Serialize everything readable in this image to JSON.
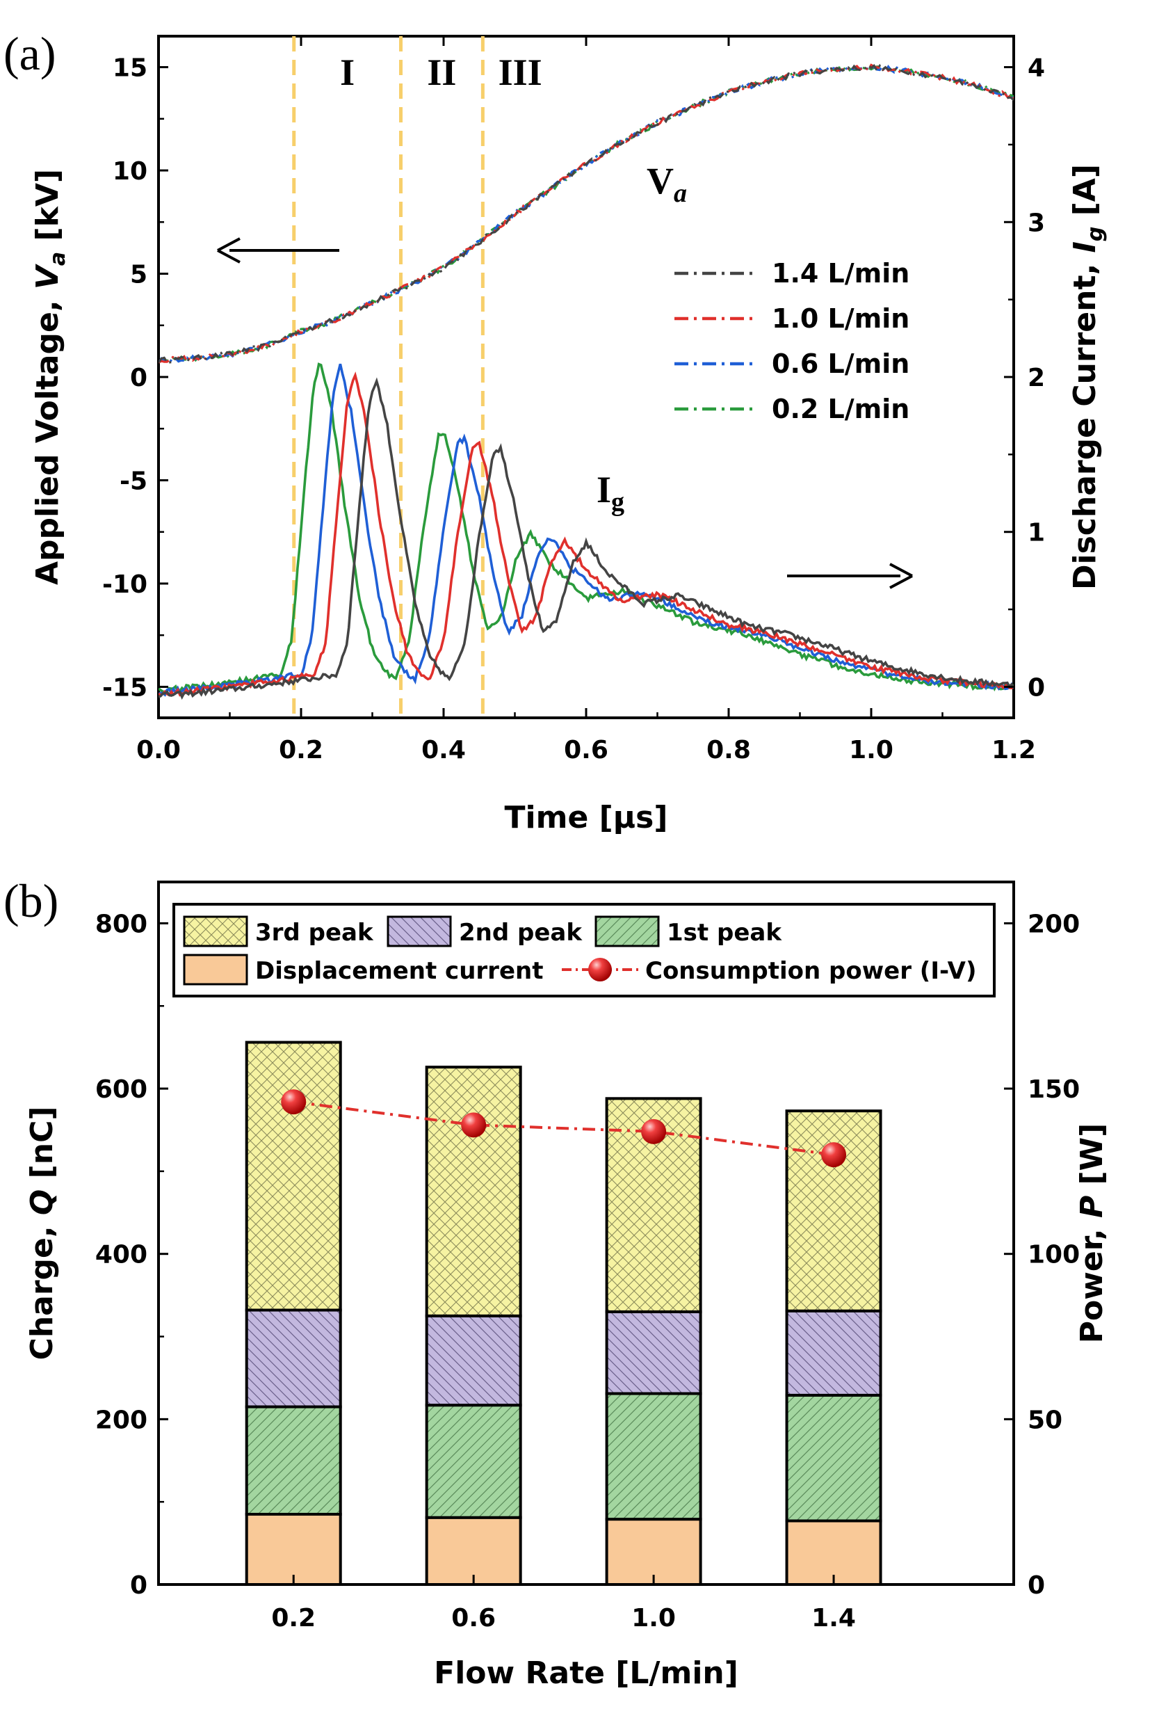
{
  "chart_data": [
    {
      "panel": "(a)",
      "type": "line",
      "xlabel": "Time [μs]",
      "ylabel_left": "Applied Voltage, V_a [kV]",
      "ylabel_right": "Discharge Current, I_g [A]",
      "xlim": [
        0.0,
        1.2
      ],
      "ylim_left": [
        -16.5,
        16.5
      ],
      "ylim_right": [
        -0.2,
        4.2
      ],
      "x_ticks": [
        "0.0",
        "0.2",
        "0.4",
        "0.6",
        "0.8",
        "1.0",
        "1.2"
      ],
      "y_left_ticks": [
        "-15",
        "-10",
        "-5",
        "0",
        "5",
        "10",
        "15"
      ],
      "y_right_ticks": [
        "0",
        "1",
        "2",
        "3",
        "4"
      ],
      "phases": [
        "I",
        "II",
        "III"
      ],
      "phase_boundaries": [
        0.19,
        0.34,
        0.455
      ],
      "annotations": {
        "voltage": "V",
        "voltage_sub": "a",
        "current": "I",
        "current_sub": "g"
      },
      "legend_position": "center-right",
      "series": [
        {
          "name": "1.4 L/min",
          "color": "#444444",
          "shift": 0.03,
          "i_scale": 0.98
        },
        {
          "name": "1.0 L/min",
          "color": "#e0302c",
          "shift": 0.0,
          "i_scale": 1.0
        },
        {
          "name": "0.6 L/min",
          "color": "#1f5fd6",
          "shift": -0.02,
          "i_scale": 1.02
        },
        {
          "name": "0.2 L/min",
          "color": "#2a9b3c",
          "shift": -0.048,
          "i_scale": 1.04
        }
      ],
      "voltage_kV": {
        "t": [
          0.0,
          0.05,
          0.1,
          0.15,
          0.2,
          0.25,
          0.3,
          0.35,
          0.4,
          0.45,
          0.5,
          0.55,
          0.6,
          0.65,
          0.7,
          0.75,
          0.8,
          0.85,
          0.9,
          0.95,
          1.0,
          1.05,
          1.1,
          1.15,
          1.2
        ],
        "v": [
          0.8,
          0.9,
          1.1,
          1.5,
          2.2,
          2.8,
          3.6,
          4.4,
          5.3,
          6.5,
          7.9,
          9.1,
          10.3,
          11.4,
          12.3,
          13.1,
          13.8,
          14.3,
          14.7,
          14.9,
          15.0,
          14.8,
          14.5,
          14.1,
          13.5
        ]
      },
      "current_A_reference_1_0_L_min": {
        "t": [
          0.0,
          0.1,
          0.18,
          0.22,
          0.235,
          0.25,
          0.265,
          0.275,
          0.29,
          0.31,
          0.33,
          0.35,
          0.37,
          0.38,
          0.4,
          0.42,
          0.44,
          0.45,
          0.47,
          0.49,
          0.51,
          0.53,
          0.55,
          0.57,
          0.6,
          0.65,
          0.7,
          0.75,
          0.8,
          0.85,
          0.9,
          0.95,
          1.0,
          1.05,
          1.1,
          1.15,
          1.2
        ],
        "i": [
          -0.05,
          0.0,
          0.05,
          0.08,
          0.3,
          1.1,
          1.85,
          2.03,
          1.75,
          1.1,
          0.55,
          0.2,
          0.08,
          0.05,
          0.3,
          1.0,
          1.55,
          1.57,
          1.2,
          0.7,
          0.35,
          0.45,
          0.8,
          0.95,
          0.75,
          0.55,
          0.6,
          0.5,
          0.4,
          0.35,
          0.28,
          0.2,
          0.13,
          0.08,
          0.04,
          0.02,
          0.0
        ]
      }
    },
    {
      "panel": "(b)",
      "type": "bar",
      "xlabel": "Flow Rate [L/min]",
      "ylabel_left": "Charge, Q [nC]",
      "ylabel_right": "Power, P [W]",
      "ylim_left": [
        0,
        850
      ],
      "ylim_right": [
        0,
        212.5
      ],
      "y_left_ticks": [
        "0",
        "200",
        "400",
        "600",
        "800"
      ],
      "y_right_ticks": [
        "0",
        "50",
        "100",
        "150",
        "200"
      ],
      "categories": [
        "0.2",
        "0.6",
        "1.0",
        "1.4"
      ],
      "legend_position": "top",
      "stacked_series": [
        {
          "name": "Displacement current",
          "values": [
            85,
            81,
            79,
            77
          ],
          "color": "#f9c998",
          "hatch": "none"
        },
        {
          "name": "1st peak",
          "values": [
            130,
            136,
            152,
            152
          ],
          "color": "#a3d6a0",
          "hatch": "diag-up"
        },
        {
          "name": "2nd peak",
          "values": [
            117,
            108,
            99,
            102
          ],
          "color": "#c3b8df",
          "hatch": "diag-down"
        },
        {
          "name": "3rd peak",
          "values": [
            324,
            301,
            258,
            242
          ],
          "color": "#f6f3a2",
          "hatch": "cross"
        }
      ],
      "line_series": {
        "name": "Consumption power (I-V)",
        "values": [
          146,
          139,
          137,
          130
        ],
        "color": "#e0302c"
      }
    }
  ]
}
